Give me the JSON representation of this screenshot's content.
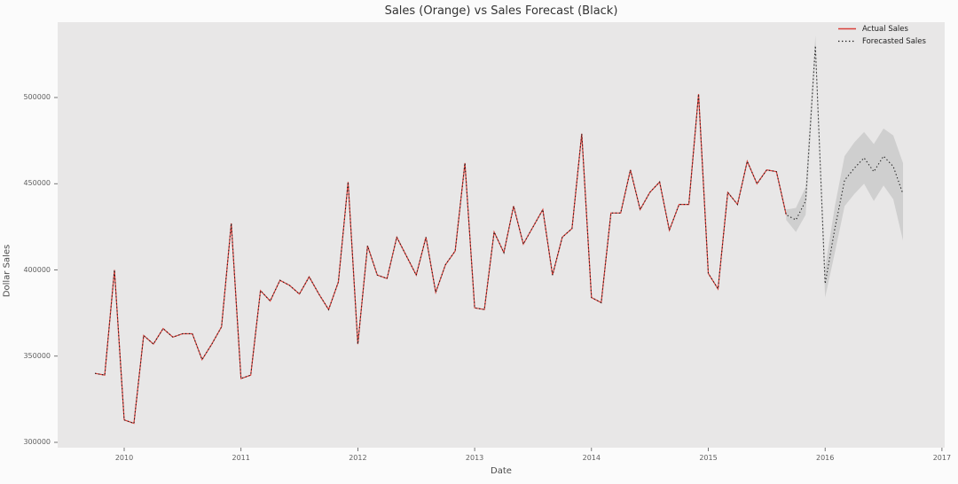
{
  "title": "Sales (Orange) vs Sales Forecast (Black)",
  "axes": {
    "x_label": "Date",
    "y_label": "Dollar Sales",
    "x_ticks": [
      2010,
      2011,
      2012,
      2013,
      2014,
      2015,
      2016,
      2017
    ],
    "y_ticks": [
      300000,
      350000,
      400000,
      450000,
      500000
    ]
  },
  "legend": {
    "items": [
      {
        "label": "Actual Sales",
        "style": "solid-red"
      },
      {
        "label": "Forecasted Sales",
        "style": "dotted-black"
      }
    ]
  },
  "colors": {
    "figure_bg": "#fbfbfb",
    "plot_bg": "#e8e7e7",
    "actual_line": "#d9403a",
    "forecast_line": "#1b1b1b",
    "confidence_band": "#9a9a9a",
    "tick_mark": "#555555"
  },
  "chart_data": {
    "type": "line",
    "title": "Sales (Orange) vs Sales Forecast (Black)",
    "xlabel": "Date",
    "ylabel": "Dollar Sales",
    "x_range_years": [
      2009.55,
      2017.1
    ],
    "ylim": [
      295000,
      545000
    ],
    "y_ticks": [
      300000,
      350000,
      400000,
      450000,
      500000
    ],
    "x_ticks": [
      2010,
      2011,
      2012,
      2013,
      2014,
      2015,
      2016,
      2017
    ],
    "grid": false,
    "legend_position": "upper right",
    "fitted_line_note": "black dotted fitted line overlaps the red actual line across the historical period, then continues alone as the forecast with a gray confidence band",
    "series": [
      {
        "name": "Actual Sales",
        "dates": [
          "2009-10",
          "2009-11",
          "2009-12",
          "2010-01",
          "2010-02",
          "2010-03",
          "2010-04",
          "2010-05",
          "2010-06",
          "2010-07",
          "2010-08",
          "2010-09",
          "2010-10",
          "2010-11",
          "2010-12",
          "2011-01",
          "2011-02",
          "2011-03",
          "2011-04",
          "2011-05",
          "2011-06",
          "2011-07",
          "2011-08",
          "2011-09",
          "2011-10",
          "2011-11",
          "2011-12",
          "2012-01",
          "2012-02",
          "2012-03",
          "2012-04",
          "2012-05",
          "2012-06",
          "2012-07",
          "2012-08",
          "2012-09",
          "2012-10",
          "2012-11",
          "2012-12",
          "2013-01",
          "2013-02",
          "2013-03",
          "2013-04",
          "2013-05",
          "2013-06",
          "2013-07",
          "2013-08",
          "2013-09",
          "2013-10",
          "2013-11",
          "2013-12",
          "2014-01",
          "2014-02",
          "2014-03",
          "2014-04",
          "2014-05",
          "2014-06",
          "2014-07",
          "2014-08",
          "2014-09",
          "2014-10",
          "2014-11",
          "2014-12",
          "2015-01",
          "2015-02",
          "2015-03",
          "2015-04",
          "2015-05",
          "2015-06",
          "2015-07",
          "2015-08",
          "2015-09"
        ],
        "values": [
          340000,
          339000,
          400000,
          313000,
          311000,
          362000,
          357000,
          366000,
          361000,
          363000,
          363000,
          348000,
          357000,
          367000,
          427000,
          337000,
          339000,
          388000,
          382000,
          394000,
          391000,
          386000,
          396000,
          386000,
          377000,
          393000,
          451000,
          357000,
          414000,
          397000,
          395000,
          419000,
          408000,
          397000,
          419000,
          387000,
          403000,
          411000,
          462000,
          378000,
          377000,
          422000,
          410000,
          437000,
          415000,
          425000,
          435000,
          397000,
          419000,
          424000,
          479000,
          384000,
          381000,
          433000,
          433000,
          458000,
          435000,
          445000,
          451000,
          423000,
          438000,
          438000,
          502000,
          398000,
          389000,
          445000,
          438000,
          463000,
          450000,
          458000,
          457000,
          432000
        ]
      },
      {
        "name": "Forecasted Sales",
        "dates": [
          "2015-09",
          "2015-10",
          "2015-11",
          "2015-12",
          "2016-01",
          "2016-02",
          "2016-03",
          "2016-04",
          "2016-05",
          "2016-06",
          "2016-07",
          "2016-08",
          "2016-09"
        ],
        "values": [
          432000,
          429000,
          440000,
          530000,
          392000,
          424000,
          452000,
          459000,
          465000,
          457000,
          466000,
          460000,
          444000
        ],
        "upper": [
          435000,
          436000,
          448000,
          536000,
          401000,
          437000,
          466000,
          474000,
          480000,
          473000,
          482000,
          478000,
          462000
        ],
        "lower": [
          429000,
          422000,
          432000,
          524000,
          384000,
          410000,
          437000,
          444000,
          450000,
          440000,
          449000,
          441000,
          417000
        ]
      }
    ]
  }
}
